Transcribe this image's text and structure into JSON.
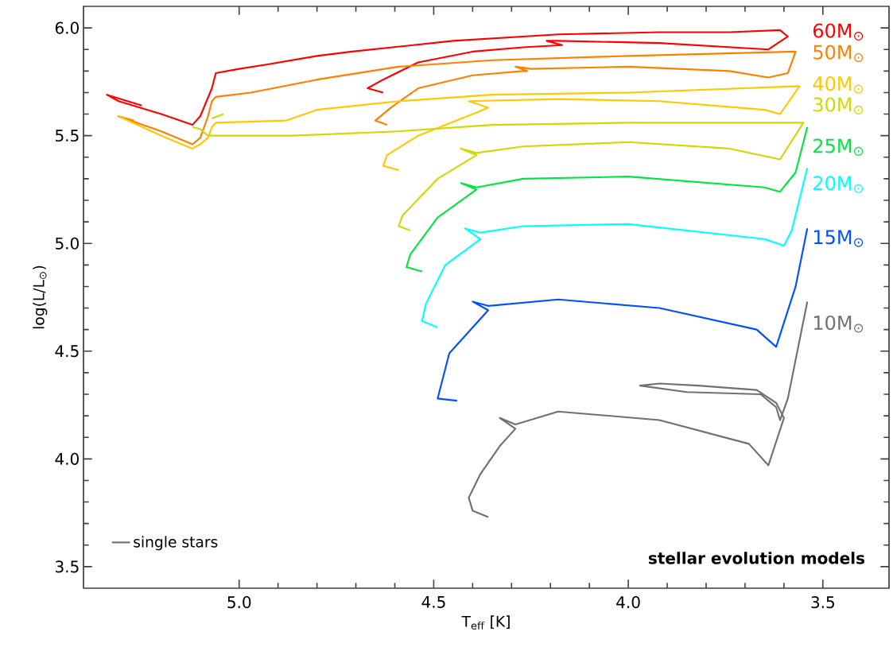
{
  "chart_data": {
    "type": "line",
    "xlabel": "T$_{eff}$ [K]",
    "ylabel": "log(L/L$_{⊙}$)",
    "xlim": [
      5.4,
      3.33
    ],
    "ylim": [
      3.4,
      6.1
    ],
    "xticks": [
      {
        "value": 5.0,
        "label": "5.0"
      },
      {
        "value": 4.5,
        "label": "4.5"
      },
      {
        "value": 4.0,
        "label": "4.0"
      },
      {
        "value": 3.5,
        "label": "3.5"
      }
    ],
    "yticks": [
      {
        "value": 3.5,
        "label": "3.5"
      },
      {
        "value": 4.0,
        "label": "4.0"
      },
      {
        "value": 4.5,
        "label": "4.5"
      },
      {
        "value": 5.0,
        "label": "5.0"
      },
      {
        "value": 5.5,
        "label": "5.5"
      },
      {
        "value": 6.0,
        "label": "6.0"
      }
    ],
    "grid": false,
    "legend": "right",
    "legend_title": "single stars",
    "marker": "none",
    "line_style": "solid",
    "annotations": [
      "stellar evolution models"
    ],
    "series": [
      {
        "name": "60M$_{⊙}$",
        "color": "#ff0000",
        "x": [
          4.63,
          4.67,
          4.63,
          4.54,
          4.4,
          4.27,
          4.17,
          4.21,
          4.18,
          3.92,
          3.64,
          3.59,
          3.61,
          3.74,
          3.92,
          4.18,
          4.45,
          4.71,
          4.8,
          4.93,
          5.0,
          5.06,
          5.07,
          5.1,
          5.12,
          5.2,
          5.31,
          5.34,
          5.25
        ],
        "values": [
          5.7,
          5.72,
          5.76,
          5.84,
          5.89,
          5.91,
          5.92,
          5.94,
          5.94,
          5.93,
          5.9,
          5.96,
          5.99,
          5.98,
          5.98,
          5.97,
          5.94,
          5.89,
          5.87,
          5.83,
          5.81,
          5.79,
          5.72,
          5.59,
          5.55,
          5.6,
          5.66,
          5.69,
          5.64
        ]
      },
      {
        "name": "50M$_{⊙}$",
        "color": "#ff8000",
        "x": [
          4.62,
          4.65,
          4.61,
          4.54,
          4.4,
          4.27,
          4.26,
          4.29,
          4.25,
          4.0,
          3.74,
          3.64,
          3.59,
          3.57,
          4.0,
          4.35,
          4.59,
          4.8,
          4.97,
          5.06,
          5.07,
          5.08,
          5.1,
          5.12,
          5.2,
          5.31,
          5.27
        ],
        "values": [
          5.55,
          5.57,
          5.63,
          5.72,
          5.78,
          5.8,
          5.8,
          5.82,
          5.81,
          5.82,
          5.8,
          5.77,
          5.79,
          5.89,
          5.87,
          5.85,
          5.82,
          5.76,
          5.7,
          5.68,
          5.66,
          5.59,
          5.49,
          5.46,
          5.52,
          5.59,
          5.57
        ]
      },
      {
        "name": "40M$_{⊙}$",
        "color": "#ffc800",
        "x": [
          4.59,
          4.63,
          4.62,
          4.54,
          4.4,
          4.36,
          4.41,
          4.18,
          3.92,
          3.65,
          3.61,
          3.56,
          4.0,
          4.35,
          4.59,
          4.8,
          4.88,
          5.06,
          5.07,
          5.08,
          5.1,
          5.12,
          5.2,
          5.31
        ],
        "values": [
          5.34,
          5.36,
          5.41,
          5.5,
          5.6,
          5.63,
          5.66,
          5.67,
          5.66,
          5.62,
          5.6,
          5.73,
          5.7,
          5.69,
          5.66,
          5.62,
          5.57,
          5.56,
          5.54,
          5.49,
          5.46,
          5.44,
          5.5,
          5.59
        ]
      },
      {
        "name": "30M$_{⊙}$",
        "color": "#d0d800",
        "x": [
          4.56,
          4.59,
          4.58,
          4.49,
          4.39,
          4.43,
          4.39,
          4.27,
          4.0,
          3.74,
          3.61,
          3.55,
          4.0,
          4.35,
          4.59,
          4.86,
          5.08,
          5.1,
          5.12,
          5.1,
          5.07,
          5.04
        ],
        "values": [
          5.06,
          5.08,
          5.13,
          5.3,
          5.41,
          5.44,
          5.42,
          5.45,
          5.47,
          5.44,
          5.39,
          5.56,
          5.56,
          5.55,
          5.52,
          5.5,
          5.5,
          5.53,
          5.54,
          null,
          5.58,
          5.6
        ]
      },
      {
        "name": "25M$_{⊙}$",
        "color": "#00e640",
        "x": [
          4.53,
          4.57,
          4.56,
          4.49,
          4.39,
          4.43,
          4.39,
          4.27,
          4.0,
          3.65,
          3.61,
          3.57,
          3.54
        ],
        "values": [
          4.87,
          4.89,
          4.95,
          5.12,
          5.25,
          5.28,
          5.26,
          5.3,
          5.31,
          5.26,
          5.24,
          5.33,
          5.54
        ]
      },
      {
        "name": "20M$_{⊙}$",
        "color": "#00ffff",
        "x": [
          4.49,
          4.53,
          4.52,
          4.47,
          4.38,
          4.42,
          4.38,
          4.27,
          4.0,
          3.65,
          3.6,
          3.58,
          3.54
        ],
        "values": [
          4.61,
          4.64,
          4.72,
          4.9,
          5.02,
          5.07,
          5.05,
          5.08,
          5.09,
          5.02,
          4.99,
          5.06,
          5.35
        ]
      },
      {
        "name": "15M$_{⊙}$",
        "color": "#0050ff",
        "x": [
          4.44,
          4.49,
          4.46,
          4.36,
          4.4,
          4.36,
          4.18,
          3.92,
          3.67,
          3.62,
          3.57,
          3.54
        ],
        "values": [
          4.27,
          4.28,
          4.49,
          4.69,
          4.73,
          4.71,
          4.74,
          4.7,
          4.6,
          4.52,
          4.8,
          5.07
        ]
      },
      {
        "name": "10M$_{⊙}$",
        "color": "#707070",
        "x": [
          4.36,
          4.4,
          4.41,
          4.38,
          4.33,
          4.29,
          4.33,
          4.29,
          4.18,
          3.92,
          3.69,
          3.64,
          3.6,
          3.62,
          3.67,
          3.82,
          3.92,
          3.97,
          3.85,
          3.66,
          3.62,
          3.61,
          3.59,
          3.54
        ],
        "values": [
          3.73,
          3.76,
          3.82,
          3.93,
          4.06,
          4.14,
          4.19,
          4.16,
          4.22,
          4.18,
          4.07,
          3.97,
          4.19,
          4.26,
          4.32,
          4.34,
          4.35,
          4.34,
          4.31,
          4.3,
          4.24,
          4.18,
          4.28,
          4.73
        ]
      }
    ]
  }
}
